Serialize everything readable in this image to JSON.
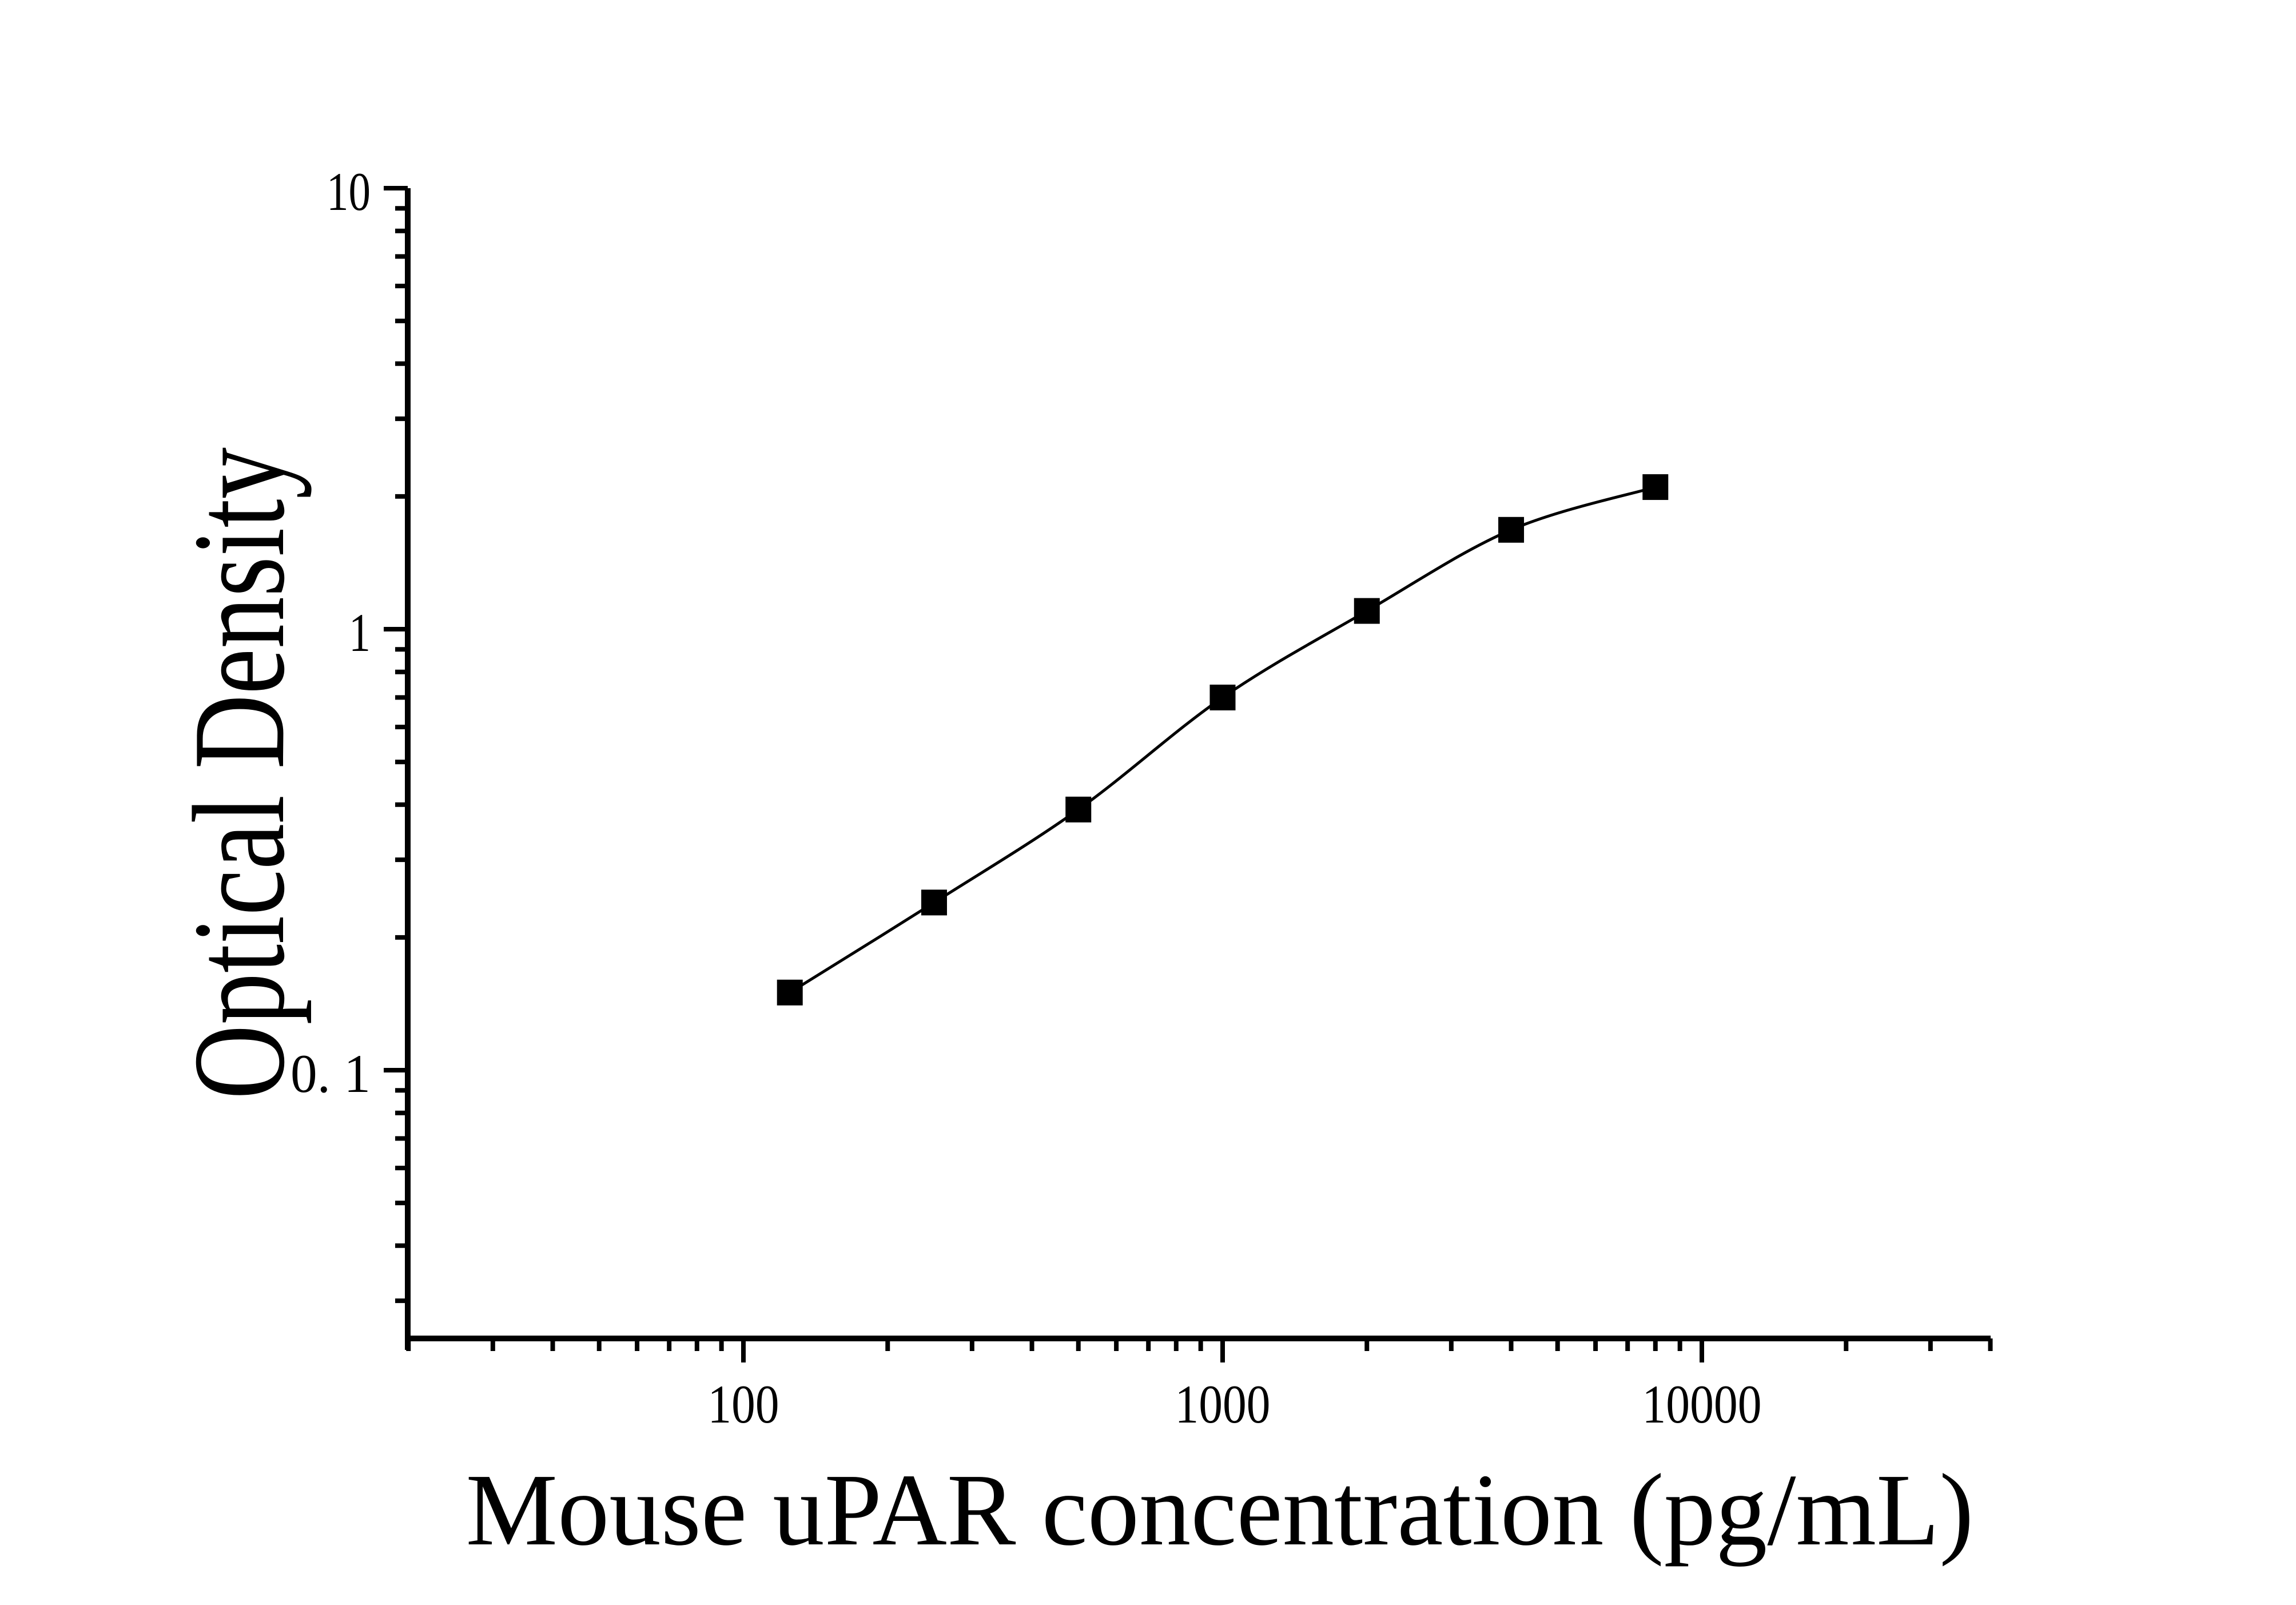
{
  "figure": {
    "background_color": "#ffffff",
    "ink_color": "#000000"
  },
  "chart_data": {
    "type": "scatter",
    "subtype": "line+scatter standard curve",
    "title": "",
    "xlabel": "Mouse uPAR concentration (pg/mL)",
    "ylabel": "Optical Density",
    "x_scale": "log",
    "y_scale": "log",
    "xlim": [
      20,
      40000
    ],
    "ylim": [
      0.024,
      10
    ],
    "grid": false,
    "legend": false,
    "marker": "filled-square",
    "marker_color": "#000000",
    "line_color": "#000000",
    "x": [
      125,
      250,
      500,
      1000,
      2000,
      4000,
      8000
    ],
    "y": [
      0.15,
      0.24,
      0.39,
      0.7,
      1.1,
      1.68,
      2.1
    ],
    "x_major_ticks": [
      {
        "value": 100,
        "label": "100"
      },
      {
        "value": 1000,
        "label": "1000"
      },
      {
        "value": 10000,
        "label": "10000"
      }
    ],
    "x_minor_ticks": [
      20,
      30,
      40,
      50,
      60,
      70,
      80,
      90,
      200,
      300,
      400,
      500,
      600,
      700,
      800,
      900,
      2000,
      3000,
      4000,
      5000,
      6000,
      7000,
      8000,
      9000,
      20000,
      30000,
      40000
    ],
    "y_major_ticks": [
      {
        "value": 10,
        "label": "10"
      },
      {
        "value": 1,
        "label": "1"
      },
      {
        "value": 0.1,
        "label": "0. 1"
      }
    ],
    "y_minor_ticks": [
      9,
      8,
      7,
      6,
      5,
      4,
      3,
      2,
      0.9,
      0.8,
      0.7,
      0.6,
      0.5,
      0.4,
      0.3,
      0.2,
      0.09,
      0.08,
      0.07,
      0.06,
      0.05,
      0.04,
      0.03
    ]
  }
}
